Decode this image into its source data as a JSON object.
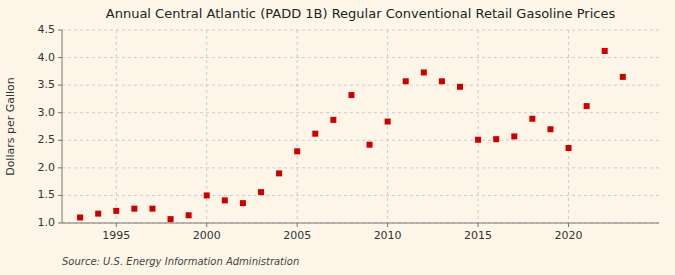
{
  "chart_data": {
    "type": "scatter",
    "title": "Annual Central Atlantic (PADD 1B) Regular Conventional Retail Gasoline Prices",
    "ylabel": "Dollars per Gallon",
    "source": "Source: U.S. Energy Information Administration",
    "x": [
      1993,
      1994,
      1995,
      1996,
      1997,
      1998,
      1999,
      2000,
      2001,
      2002,
      2003,
      2004,
      2005,
      2006,
      2007,
      2008,
      2009,
      2010,
      2011,
      2012,
      2013,
      2014,
      2015,
      2016,
      2017,
      2018,
      2019,
      2020,
      2021,
      2022,
      2023
    ],
    "values": [
      1.1,
      1.17,
      1.22,
      1.26,
      1.26,
      1.07,
      1.14,
      1.5,
      1.41,
      1.36,
      1.56,
      1.9,
      2.3,
      2.62,
      2.87,
      3.32,
      2.42,
      2.84,
      3.57,
      3.73,
      3.57,
      3.47,
      2.51,
      2.52,
      2.57,
      2.89,
      2.7,
      2.36,
      3.12,
      4.12,
      3.65
    ],
    "color": "#cc0000",
    "marker": "square",
    "xlim": [
      1992.0,
      2025.0
    ],
    "ylim": [
      1.0,
      4.5
    ],
    "xticks": [
      1995,
      2000,
      2005,
      2010,
      2015,
      2020
    ],
    "yticks": [
      {
        "value": 1.0,
        "label": "1.0"
      },
      1.5,
      {
        "value": 2.0,
        "label": "2.0"
      },
      2.5,
      {
        "value": 3.0,
        "label": "3.0"
      },
      3.5,
      {
        "value": 4.0,
        "label": "4.0"
      },
      4.5
    ],
    "grid": true
  }
}
